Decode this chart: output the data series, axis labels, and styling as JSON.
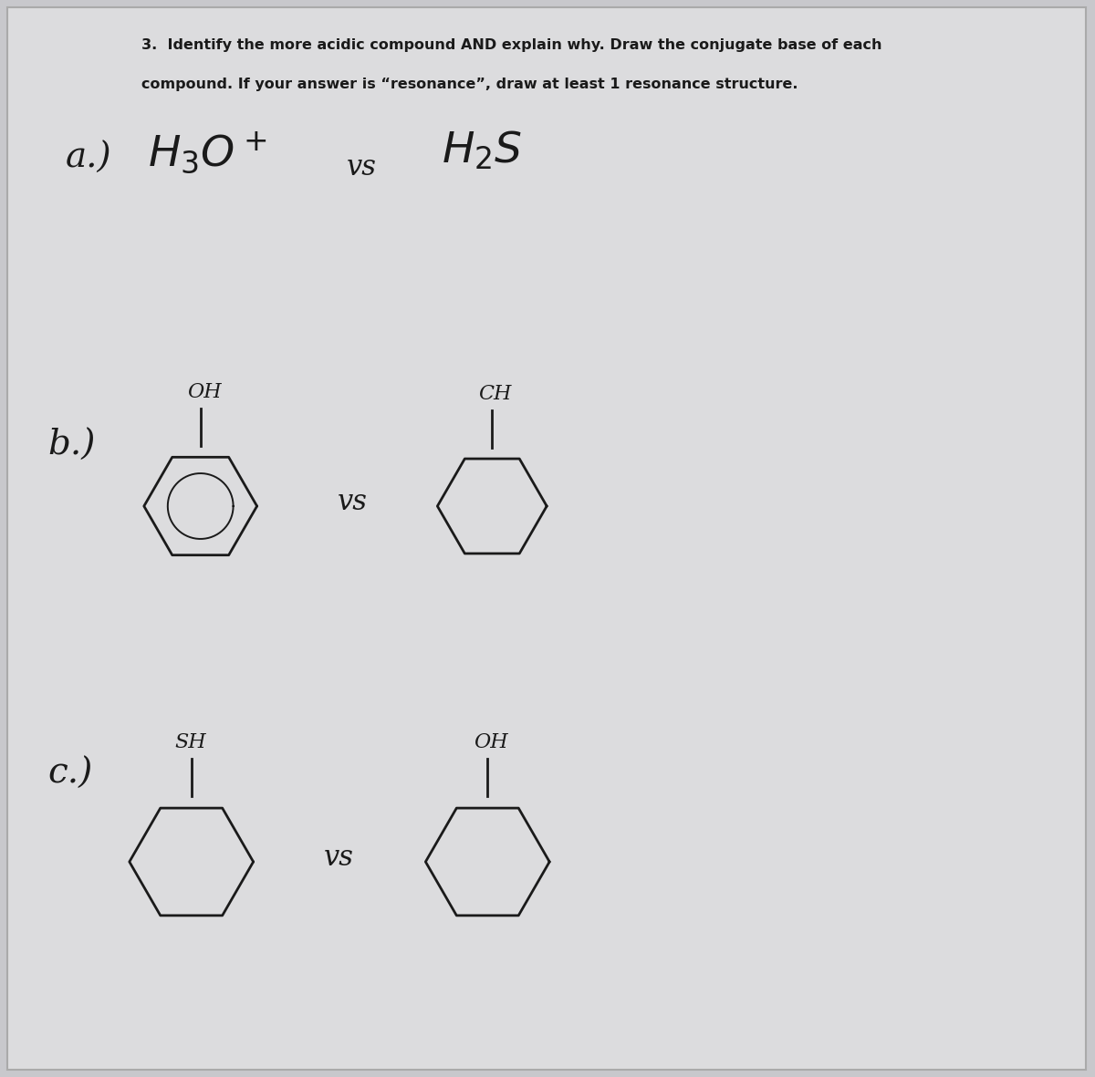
{
  "bg_color": "#c8c8cc",
  "paper_color": "#dcdcde",
  "ink_color": "#1a1a1a",
  "title_line1": "3.  Identify the more acidic compound AND explain why. Draw the conjugate base of each",
  "title_line2": "compound. If your answer is “resonance”, draw at least 1 resonance structure.",
  "title_fontsize": 11.5,
  "part_a_label": "a.)",
  "part_a_left": "$H_3O^+$",
  "part_a_vs": "vs",
  "part_a_right": "$H_2S$",
  "part_b_label": "b.)",
  "part_b_left_label": "OH",
  "part_b_vs": "vs",
  "part_b_right_label": "CH",
  "part_c_label": "c.)",
  "part_c_left_label": "SH",
  "part_c_vs": "vs",
  "part_c_right_label": "OH",
  "lw_mol": 2.0,
  "label_fontsize": 16,
  "part_label_fontsize": 28,
  "chem_fontsize": 34,
  "vs_fontsize": 22
}
